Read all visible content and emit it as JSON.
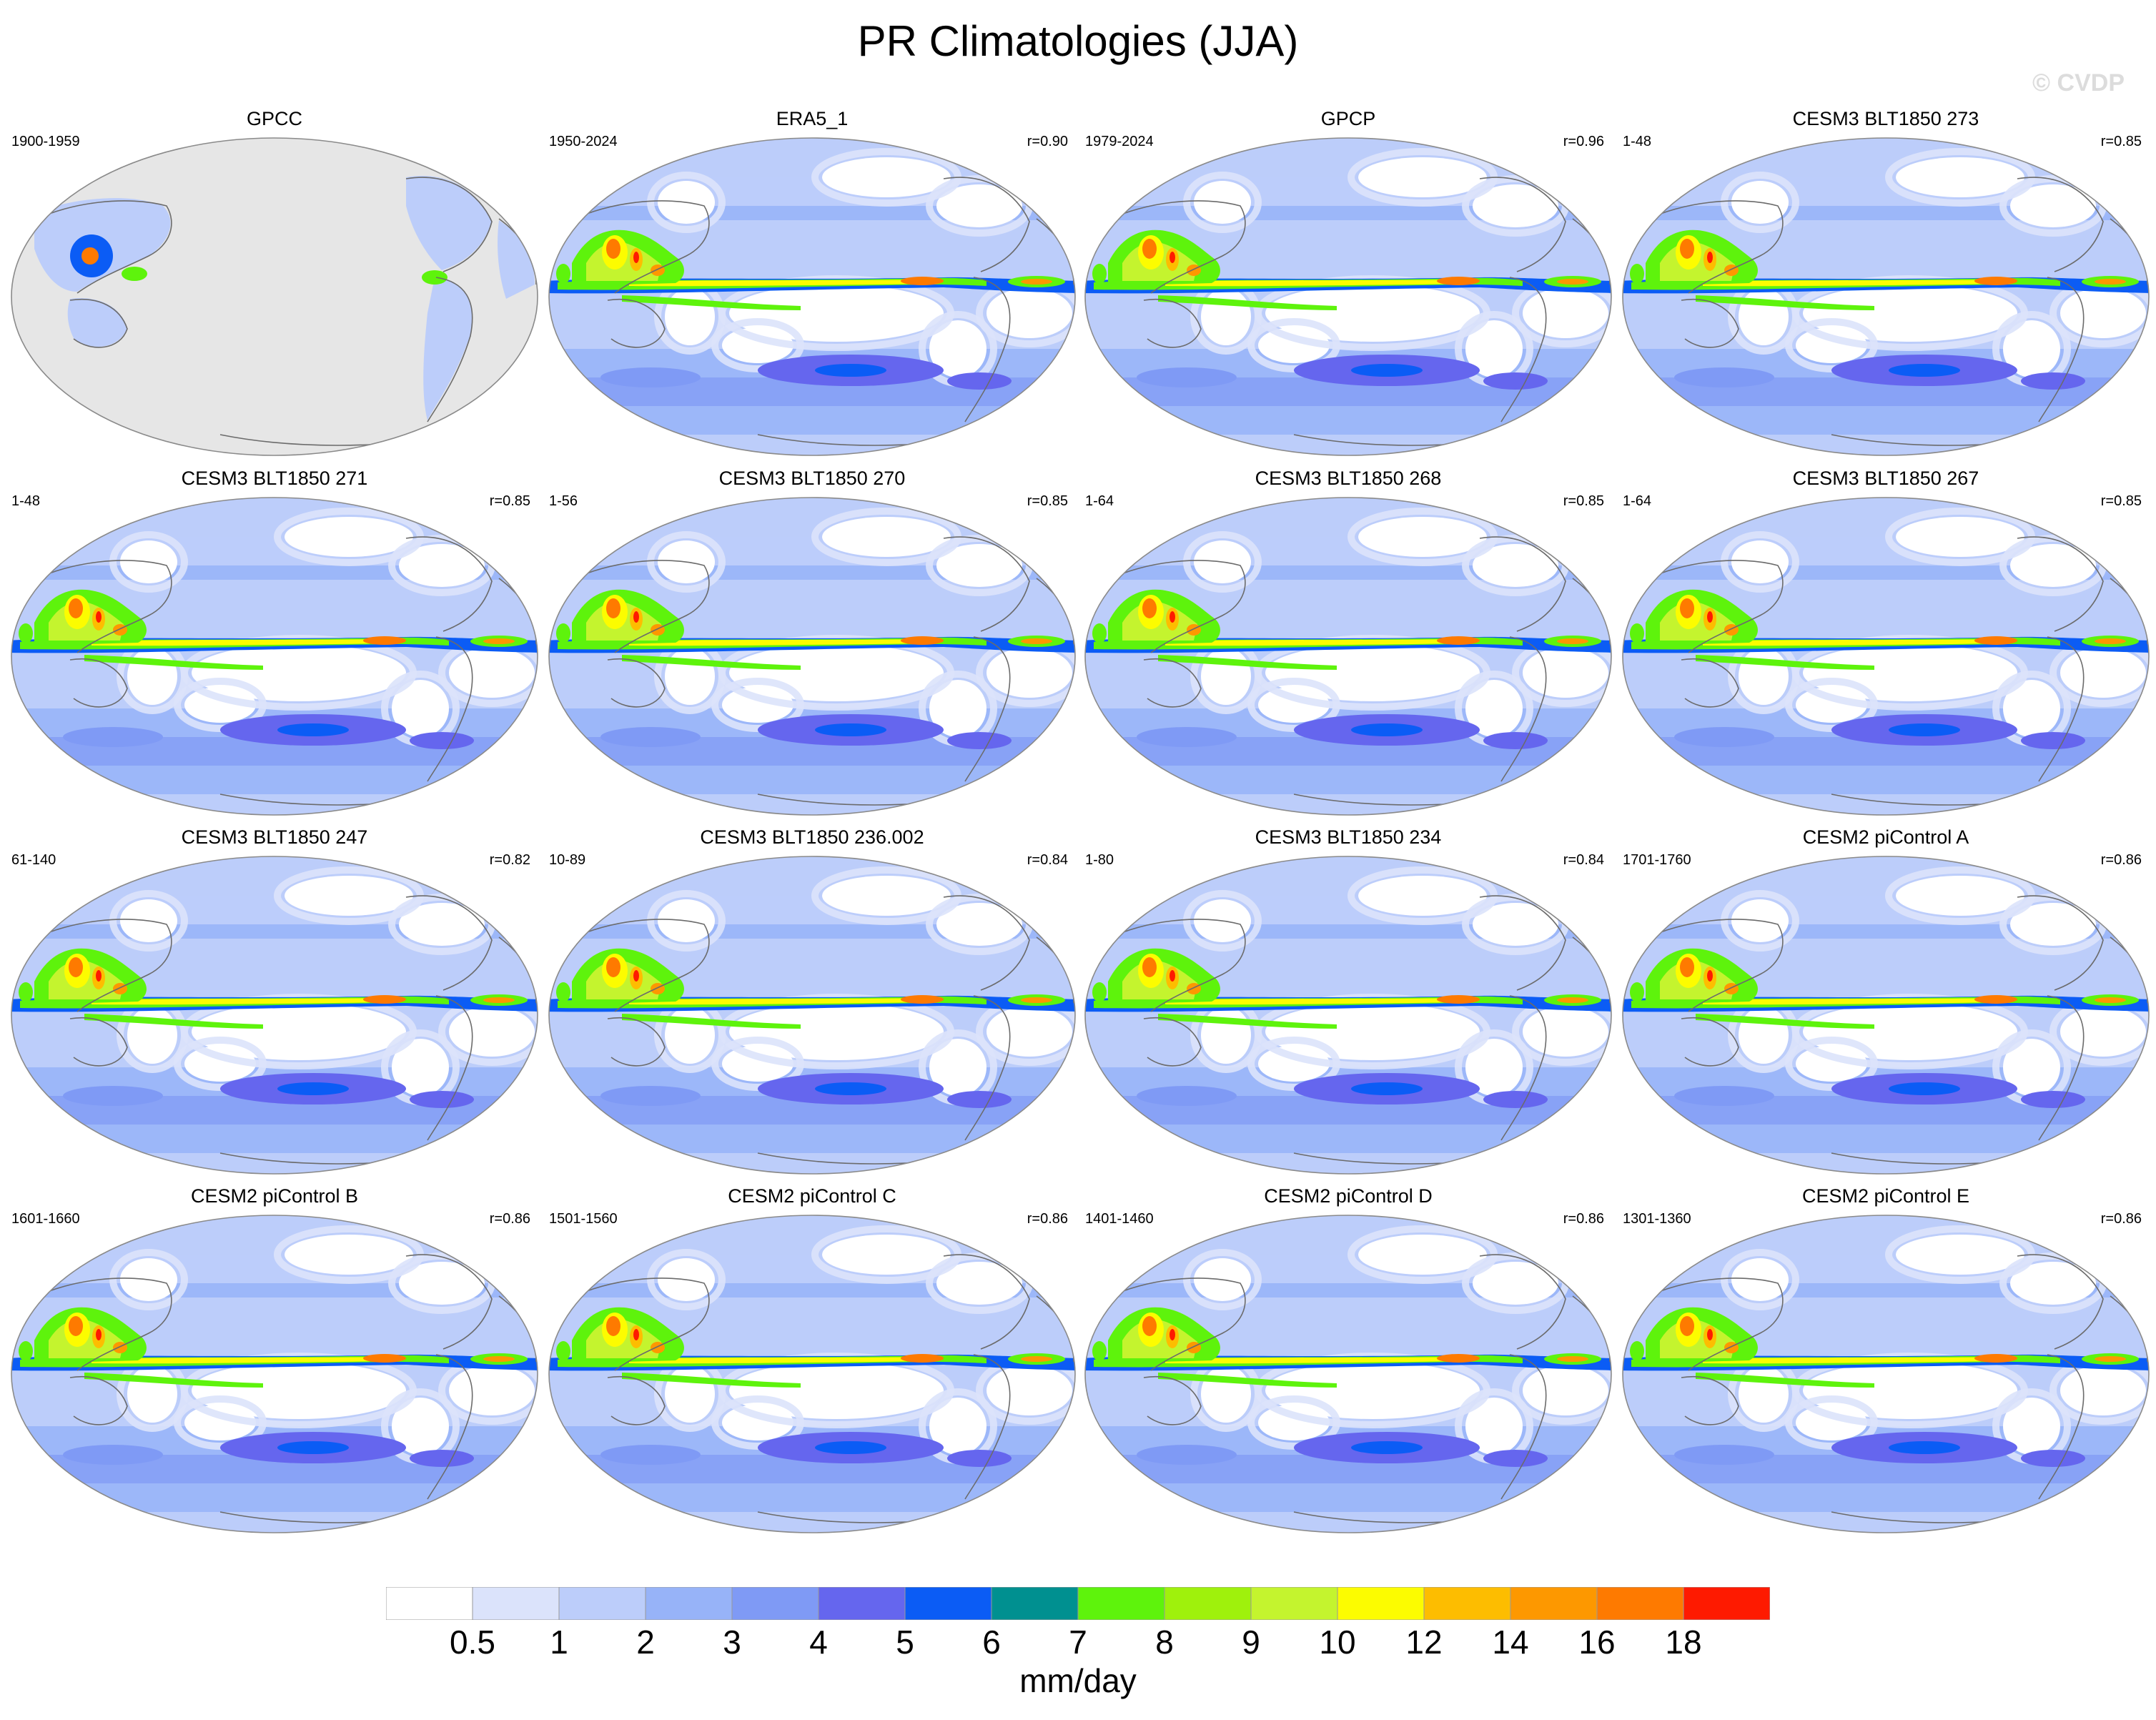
{
  "figure": {
    "title": "PR Climatologies (JJA)",
    "watermark": "© CVDP"
  },
  "panels": [
    {
      "title": "GPCC",
      "years": "1900-1959",
      "corr": "",
      "type": "obs-land",
      "colors": {
        "land": "#a9c8f7",
        "ocean": "#e6e6e6"
      }
    },
    {
      "title": "ERA5_1",
      "years": "1950-2024",
      "corr": "r=0.90",
      "type": "obs"
    },
    {
      "title": "GPCP",
      "years": "1979-2024",
      "corr": "r=0.96",
      "type": "obs"
    },
    {
      "title": "CESM3 BLT1850 273",
      "years": "1-48",
      "corr": "r=0.85",
      "type": "model"
    },
    {
      "title": "CESM3 BLT1850 271",
      "years": "1-48",
      "corr": "r=0.85",
      "type": "model"
    },
    {
      "title": "CESM3 BLT1850 270",
      "years": "1-56",
      "corr": "r=0.85",
      "type": "model"
    },
    {
      "title": "CESM3 BLT1850 268",
      "years": "1-64",
      "corr": "r=0.85",
      "type": "model"
    },
    {
      "title": "CESM3 BLT1850 267",
      "years": "1-64",
      "corr": "r=0.85",
      "type": "model"
    },
    {
      "title": "CESM3 BLT1850 247",
      "years": "61-140",
      "corr": "r=0.82",
      "type": "model"
    },
    {
      "title": "CESM3 BLT1850 236.002",
      "years": "10-89",
      "corr": "r=0.84",
      "type": "model"
    },
    {
      "title": "CESM3 BLT1850 234",
      "years": "1-80",
      "corr": "r=0.84",
      "type": "model"
    },
    {
      "title": "CESM2 piControl A",
      "years": "1701-1760",
      "corr": "r=0.86",
      "type": "model"
    },
    {
      "title": "CESM2 piControl B",
      "years": "1601-1660",
      "corr": "r=0.86",
      "type": "model"
    },
    {
      "title": "CESM2 piControl C",
      "years": "1501-1560",
      "corr": "r=0.86",
      "type": "model"
    },
    {
      "title": "CESM2 piControl D",
      "years": "1401-1460",
      "corr": "r=0.86",
      "type": "model"
    },
    {
      "title": "CESM2 piControl E",
      "years": "1301-1360",
      "corr": "r=0.86",
      "type": "model"
    }
  ],
  "colorbar": {
    "colors": [
      "#ffffff",
      "#dbe3fb",
      "#bccdfa",
      "#97b3f8",
      "#7f9af5",
      "#6566ee",
      "#0b5cf5",
      "#009090",
      "#5ef30c",
      "#9ff10c",
      "#c4f42e",
      "#fcfc00",
      "#fdbd00",
      "#fd9800",
      "#fe7a00",
      "#fe1a00"
    ],
    "labels": [
      "0.5",
      "1",
      "2",
      "3",
      "4",
      "5",
      "6",
      "7",
      "8",
      "9",
      "10",
      "12",
      "14",
      "16",
      "18"
    ],
    "units": "mm/day"
  }
}
